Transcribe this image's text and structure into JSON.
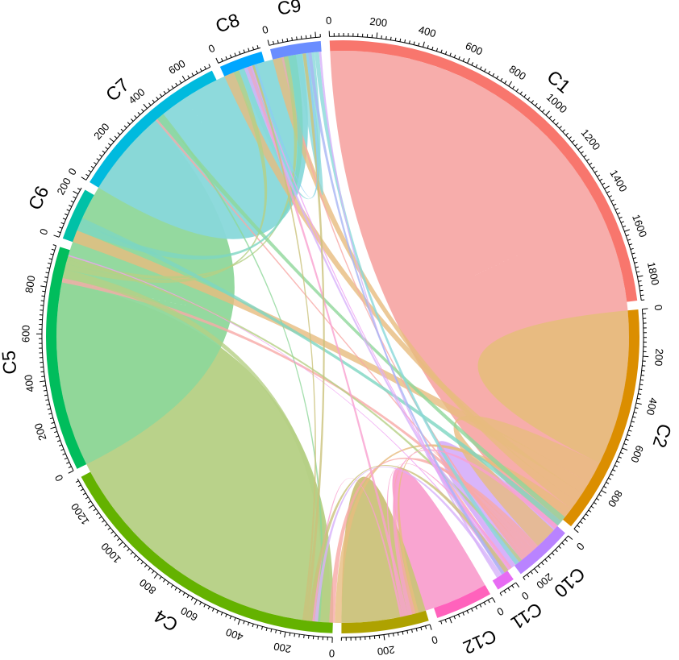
{
  "sectors": [
    {
      "name": "C1",
      "size": 1900,
      "color": "#F8766D",
      "fill": "#F7A9A6",
      "ticks": [
        0,
        200,
        400,
        600,
        800,
        1000,
        1200,
        1400,
        1600,
        1800
      ]
    },
    {
      "name": "C2",
      "size": 1000,
      "color": "#DB8E00",
      "fill": "#E7BC7E",
      "ticks": [
        0,
        200,
        400,
        600,
        800
      ]
    },
    {
      "name": "C10",
      "size": 260,
      "color": "#B983FF",
      "fill": "#D7B1FA",
      "ticks": [
        0,
        200
      ]
    },
    {
      "name": "C11",
      "size": 80,
      "color": "#E76BF3",
      "fill": "#EFA1F3",
      "ticks": [
        0
      ]
    },
    {
      "name": "C12",
      "size": 250,
      "color": "#FF62BC",
      "fill": "#F9A0CF",
      "ticks": [
        0
      ]
    },
    {
      "name": "C3",
      "size": 380,
      "color": "#AEA200",
      "fill": "#CBC27A",
      "ticks": [
        0,
        200
      ]
    },
    {
      "name": "C4",
      "size": 1330,
      "color": "#64B200",
      "fill": "#B5D084",
      "ticks": [
        0,
        200,
        400,
        600,
        800,
        1000,
        1200
      ]
    },
    {
      "name": "C5",
      "size": 980,
      "color": "#00BD5C",
      "fill": "#8ED79A",
      "ticks": [
        0,
        200,
        400,
        600,
        800
      ]
    },
    {
      "name": "C6",
      "size": 230,
      "color": "#00C1A7",
      "fill": "#7DD6C2",
      "ticks": [
        0,
        200
      ]
    },
    {
      "name": "C7",
      "size": 720,
      "color": "#00BADE",
      "fill": "#88D8DA",
      "ticks": [
        0,
        200,
        400,
        600
      ]
    },
    {
      "name": "C8",
      "size": 190,
      "color": "#00A6FF",
      "fill": "#8CCCF4",
      "ticks": [
        0
      ]
    },
    {
      "name": "C9",
      "size": 220,
      "color": "#6A8DFF",
      "fill": "#A7B5F4",
      "ticks": [
        0
      ]
    }
  ],
  "links": [
    {
      "from": "C1",
      "to": "C1",
      "value": 1500
    },
    {
      "from": "C2",
      "to": "C2",
      "value": 350
    },
    {
      "from": "C4",
      "to": "C4",
      "value": 1100
    },
    {
      "from": "C5",
      "to": "C5",
      "value": 840
    },
    {
      "from": "C7",
      "to": "C7",
      "value": 560
    },
    {
      "from": "C12",
      "to": "C12",
      "value": 160
    },
    {
      "from": "C10",
      "to": "C10",
      "value": 140
    },
    {
      "from": "C3",
      "to": "C3",
      "value": 190
    },
    {
      "from": "C2",
      "to": "C1",
      "value": 100
    },
    {
      "from": "C2",
      "to": "C6",
      "value": 55
    },
    {
      "from": "C2",
      "to": "C8",
      "value": 45
    },
    {
      "from": "C2",
      "to": "C9",
      "value": 40
    },
    {
      "from": "C2",
      "to": "C3",
      "value": 30
    },
    {
      "from": "C2",
      "to": "C12",
      "value": 15
    },
    {
      "from": "C1",
      "to": "C3",
      "value": 25
    },
    {
      "from": "C1",
      "to": "C4",
      "value": 20
    },
    {
      "from": "C1",
      "to": "C12",
      "value": 15
    },
    {
      "from": "C1",
      "to": "C10",
      "value": 15
    },
    {
      "from": "C1",
      "to": "C5",
      "value": 10
    },
    {
      "from": "C1",
      "to": "C9",
      "value": 10
    },
    {
      "from": "C4",
      "to": "C3",
      "value": 40
    },
    {
      "from": "C4",
      "to": "C8",
      "value": 25
    },
    {
      "from": "C4",
      "to": "C9",
      "value": 20
    },
    {
      "from": "C4",
      "to": "C1",
      "value": 15
    },
    {
      "from": "C5",
      "to": "C2",
      "value": 25
    },
    {
      "from": "C5",
      "to": "C3",
      "value": 10
    },
    {
      "from": "C6",
      "to": "C9",
      "value": 35
    },
    {
      "from": "C6",
      "to": "C2",
      "value": 25
    },
    {
      "from": "C7",
      "to": "C9",
      "value": 30
    },
    {
      "from": "C7",
      "to": "C8",
      "value": 25
    },
    {
      "from": "C7",
      "to": "C1",
      "value": 20
    },
    {
      "from": "C10",
      "to": "C1",
      "value": 20
    },
    {
      "from": "C10",
      "to": "C8",
      "value": 15
    },
    {
      "from": "C10",
      "to": "C3",
      "value": 15
    },
    {
      "from": "C10",
      "to": "C7",
      "value": 10
    },
    {
      "from": "C12",
      "to": "C2",
      "value": 20
    },
    {
      "from": "C12",
      "to": "C8",
      "value": 15
    },
    {
      "from": "C12",
      "to": "C1",
      "value": 10
    },
    {
      "from": "C12",
      "to": "C3",
      "value": 10
    },
    {
      "from": "C11",
      "to": "C1",
      "value": 10
    },
    {
      "from": "C11",
      "to": "C8",
      "value": 8
    },
    {
      "from": "C11",
      "to": "C4",
      "value": 6
    },
    {
      "from": "C3",
      "to": "C1",
      "value": 20
    },
    {
      "from": "C3",
      "to": "C9",
      "value": 15
    },
    {
      "from": "C3",
      "to": "C8",
      "value": 10
    },
    {
      "from": "C8",
      "to": "C9",
      "value": 10
    },
    {
      "from": "C9",
      "to": "C1",
      "value": 15
    }
  ]
}
